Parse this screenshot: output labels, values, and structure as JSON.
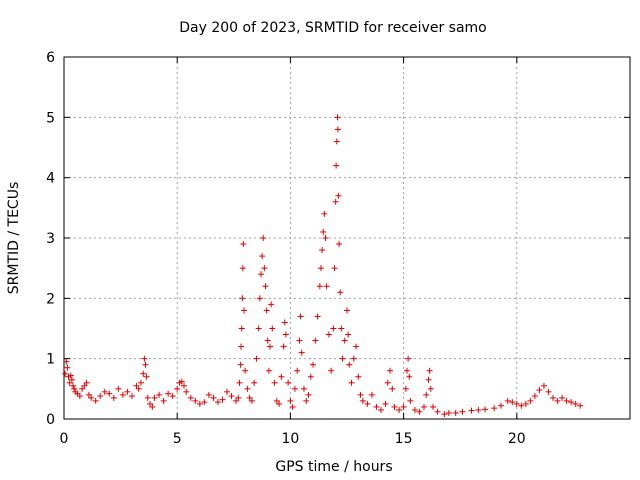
{
  "chart_data": {
    "type": "scatter",
    "title": "Day 200 of 2023, SRMTID for receiver samo",
    "xlabel": "GPS time / hours",
    "ylabel": "SRMTID / TECUs",
    "xlim": [
      0,
      25
    ],
    "ylim": [
      0,
      6
    ],
    "x_ticks": [
      "0",
      "5",
      "10",
      "15",
      "20"
    ],
    "y_ticks": [
      "0",
      "1",
      "2",
      "3",
      "4",
      "5",
      "6"
    ],
    "grid": true,
    "marker": "+",
    "marker_color": "#e00000",
    "series": [
      {
        "name": "SRMTID",
        "points": [
          [
            0.05,
            0.75
          ],
          [
            0.1,
            0.95
          ],
          [
            0.15,
            0.85
          ],
          [
            0.2,
            0.7
          ],
          [
            0.25,
            0.6
          ],
          [
            0.3,
            0.72
          ],
          [
            0.35,
            0.65
          ],
          [
            0.4,
            0.55
          ],
          [
            0.45,
            0.5
          ],
          [
            0.5,
            0.45
          ],
          [
            0.6,
            0.42
          ],
          [
            0.7,
            0.38
          ],
          [
            0.8,
            0.5
          ],
          [
            0.9,
            0.55
          ],
          [
            1.0,
            0.6
          ],
          [
            1.1,
            0.4
          ],
          [
            1.2,
            0.35
          ],
          [
            1.4,
            0.3
          ],
          [
            1.6,
            0.38
          ],
          [
            1.8,
            0.45
          ],
          [
            2.0,
            0.42
          ],
          [
            2.2,
            0.35
          ],
          [
            2.4,
            0.5
          ],
          [
            2.6,
            0.4
          ],
          [
            2.8,
            0.45
          ],
          [
            3.0,
            0.38
          ],
          [
            3.2,
            0.55
          ],
          [
            3.3,
            0.5
          ],
          [
            3.4,
            0.6
          ],
          [
            3.5,
            0.75
          ],
          [
            3.55,
            1.0
          ],
          [
            3.6,
            0.9
          ],
          [
            3.65,
            0.7
          ],
          [
            3.7,
            0.35
          ],
          [
            3.8,
            0.25
          ],
          [
            3.9,
            0.2
          ],
          [
            4.0,
            0.35
          ],
          [
            4.2,
            0.4
          ],
          [
            4.4,
            0.3
          ],
          [
            4.6,
            0.42
          ],
          [
            4.8,
            0.38
          ],
          [
            5.0,
            0.5
          ],
          [
            5.1,
            0.6
          ],
          [
            5.2,
            0.62
          ],
          [
            5.3,
            0.55
          ],
          [
            5.4,
            0.45
          ],
          [
            5.6,
            0.35
          ],
          [
            5.8,
            0.3
          ],
          [
            6.0,
            0.25
          ],
          [
            6.2,
            0.28
          ],
          [
            6.4,
            0.4
          ],
          [
            6.6,
            0.35
          ],
          [
            6.8,
            0.28
          ],
          [
            7.0,
            0.32
          ],
          [
            7.2,
            0.45
          ],
          [
            7.4,
            0.38
          ],
          [
            7.6,
            0.3
          ],
          [
            7.7,
            0.35
          ],
          [
            7.75,
            0.6
          ],
          [
            7.8,
            0.9
          ],
          [
            7.82,
            1.2
          ],
          [
            7.85,
            1.5
          ],
          [
            7.88,
            2.0
          ],
          [
            7.9,
            2.5
          ],
          [
            7.92,
            2.9
          ],
          [
            7.95,
            1.8
          ],
          [
            8.0,
            0.8
          ],
          [
            8.1,
            0.5
          ],
          [
            8.2,
            0.35
          ],
          [
            8.3,
            0.3
          ],
          [
            8.4,
            0.6
          ],
          [
            8.5,
            1.0
          ],
          [
            8.6,
            1.5
          ],
          [
            8.65,
            2.0
          ],
          [
            8.7,
            2.4
          ],
          [
            8.75,
            2.7
          ],
          [
            8.8,
            3.0
          ],
          [
            8.85,
            2.5
          ],
          [
            8.9,
            2.2
          ],
          [
            8.95,
            1.8
          ],
          [
            9.0,
            1.3
          ],
          [
            9.05,
            0.8
          ],
          [
            9.1,
            1.2
          ],
          [
            9.15,
            1.9
          ],
          [
            9.2,
            1.5
          ],
          [
            9.3,
            0.6
          ],
          [
            9.4,
            0.3
          ],
          [
            9.5,
            0.25
          ],
          [
            9.6,
            0.7
          ],
          [
            9.7,
            1.2
          ],
          [
            9.75,
            1.6
          ],
          [
            9.8,
            1.4
          ],
          [
            9.9,
            0.6
          ],
          [
            10.0,
            0.3
          ],
          [
            10.1,
            0.2
          ],
          [
            10.2,
            0.5
          ],
          [
            10.3,
            0.8
          ],
          [
            10.4,
            1.3
          ],
          [
            10.45,
            1.7
          ],
          [
            10.5,
            1.1
          ],
          [
            10.6,
            0.5
          ],
          [
            10.7,
            0.3
          ],
          [
            10.8,
            0.4
          ],
          [
            10.9,
            0.7
          ],
          [
            11.0,
            0.9
          ],
          [
            11.1,
            1.3
          ],
          [
            11.2,
            1.7
          ],
          [
            11.3,
            2.2
          ],
          [
            11.35,
            2.5
          ],
          [
            11.4,
            2.8
          ],
          [
            11.45,
            3.1
          ],
          [
            11.5,
            3.4
          ],
          [
            11.55,
            3.0
          ],
          [
            11.6,
            2.2
          ],
          [
            11.7,
            1.4
          ],
          [
            11.8,
            0.8
          ],
          [
            11.9,
            1.5
          ],
          [
            11.95,
            2.5
          ],
          [
            12.0,
            3.6
          ],
          [
            12.02,
            4.2
          ],
          [
            12.05,
            4.6
          ],
          [
            12.08,
            5.0
          ],
          [
            12.1,
            4.8
          ],
          [
            12.12,
            3.7
          ],
          [
            12.15,
            2.9
          ],
          [
            12.2,
            2.1
          ],
          [
            12.25,
            1.5
          ],
          [
            12.3,
            1.0
          ],
          [
            12.4,
            1.3
          ],
          [
            12.5,
            1.8
          ],
          [
            12.55,
            1.4
          ],
          [
            12.6,
            0.9
          ],
          [
            12.7,
            0.6
          ],
          [
            12.8,
            1.0
          ],
          [
            12.9,
            1.2
          ],
          [
            13.0,
            0.7
          ],
          [
            13.1,
            0.4
          ],
          [
            13.2,
            0.3
          ],
          [
            13.4,
            0.25
          ],
          [
            13.6,
            0.4
          ],
          [
            13.8,
            0.2
          ],
          [
            14.0,
            0.15
          ],
          [
            14.2,
            0.25
          ],
          [
            14.3,
            0.6
          ],
          [
            14.4,
            0.8
          ],
          [
            14.5,
            0.5
          ],
          [
            14.6,
            0.2
          ],
          [
            14.8,
            0.15
          ],
          [
            15.0,
            0.2
          ],
          [
            15.1,
            0.5
          ],
          [
            15.15,
            0.8
          ],
          [
            15.2,
            1.0
          ],
          [
            15.25,
            0.7
          ],
          [
            15.3,
            0.3
          ],
          [
            15.5,
            0.15
          ],
          [
            15.7,
            0.12
          ],
          [
            15.9,
            0.2
          ],
          [
            16.0,
            0.4
          ],
          [
            16.1,
            0.65
          ],
          [
            16.15,
            0.8
          ],
          [
            16.2,
            0.5
          ],
          [
            16.3,
            0.2
          ],
          [
            16.5,
            0.12
          ],
          [
            16.8,
            0.08
          ],
          [
            17.0,
            0.1
          ],
          [
            17.3,
            0.1
          ],
          [
            17.6,
            0.12
          ],
          [
            18.0,
            0.14
          ],
          [
            18.3,
            0.15
          ],
          [
            18.6,
            0.16
          ],
          [
            19.0,
            0.18
          ],
          [
            19.3,
            0.22
          ],
          [
            19.6,
            0.3
          ],
          [
            19.8,
            0.28
          ],
          [
            20.0,
            0.25
          ],
          [
            20.2,
            0.22
          ],
          [
            20.4,
            0.25
          ],
          [
            20.6,
            0.3
          ],
          [
            20.8,
            0.38
          ],
          [
            21.0,
            0.48
          ],
          [
            21.2,
            0.55
          ],
          [
            21.4,
            0.45
          ],
          [
            21.6,
            0.35
          ],
          [
            21.8,
            0.3
          ],
          [
            22.0,
            0.35
          ],
          [
            22.2,
            0.3
          ],
          [
            22.4,
            0.28
          ],
          [
            22.6,
            0.25
          ],
          [
            22.8,
            0.22
          ]
        ]
      }
    ]
  }
}
